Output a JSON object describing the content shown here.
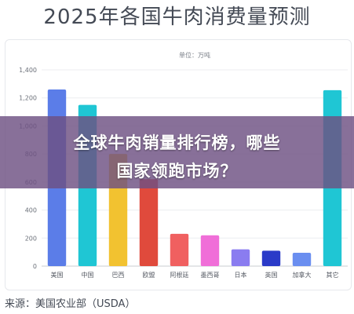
{
  "title": "2025年各国牛肉消费量预测",
  "banner": {
    "line1": "全球牛肉销量排行榜，哪些",
    "line2": "国家领跑市场？"
  },
  "source": "来源：美国农业部（USDA）",
  "chart_data": {
    "type": "bar",
    "unit_label": "单位：万吨",
    "categories": [
      "美国",
      "中国",
      "巴西",
      "欧盟",
      "阿根廷",
      "墨西哥",
      "日本",
      "英国",
      "加拿大",
      "其它"
    ],
    "values": [
      1260,
      1150,
      800,
      620,
      230,
      220,
      120,
      110,
      95,
      1255
    ],
    "colors": [
      "#5b7de8",
      "#1fc6d4",
      "#f2c230",
      "#e04a3c",
      "#f06060",
      "#f06ed8",
      "#8a7cf0",
      "#2a3ac8",
      "#6a8ef0",
      "#1fc6d4"
    ],
    "y_ticks": [
      "0",
      "200",
      "400",
      "600",
      "800",
      "1,000",
      "1,200",
      "1,400"
    ],
    "ylim": [
      0,
      1400
    ],
    "grid": true,
    "xlabel": "",
    "ylabel": ""
  }
}
